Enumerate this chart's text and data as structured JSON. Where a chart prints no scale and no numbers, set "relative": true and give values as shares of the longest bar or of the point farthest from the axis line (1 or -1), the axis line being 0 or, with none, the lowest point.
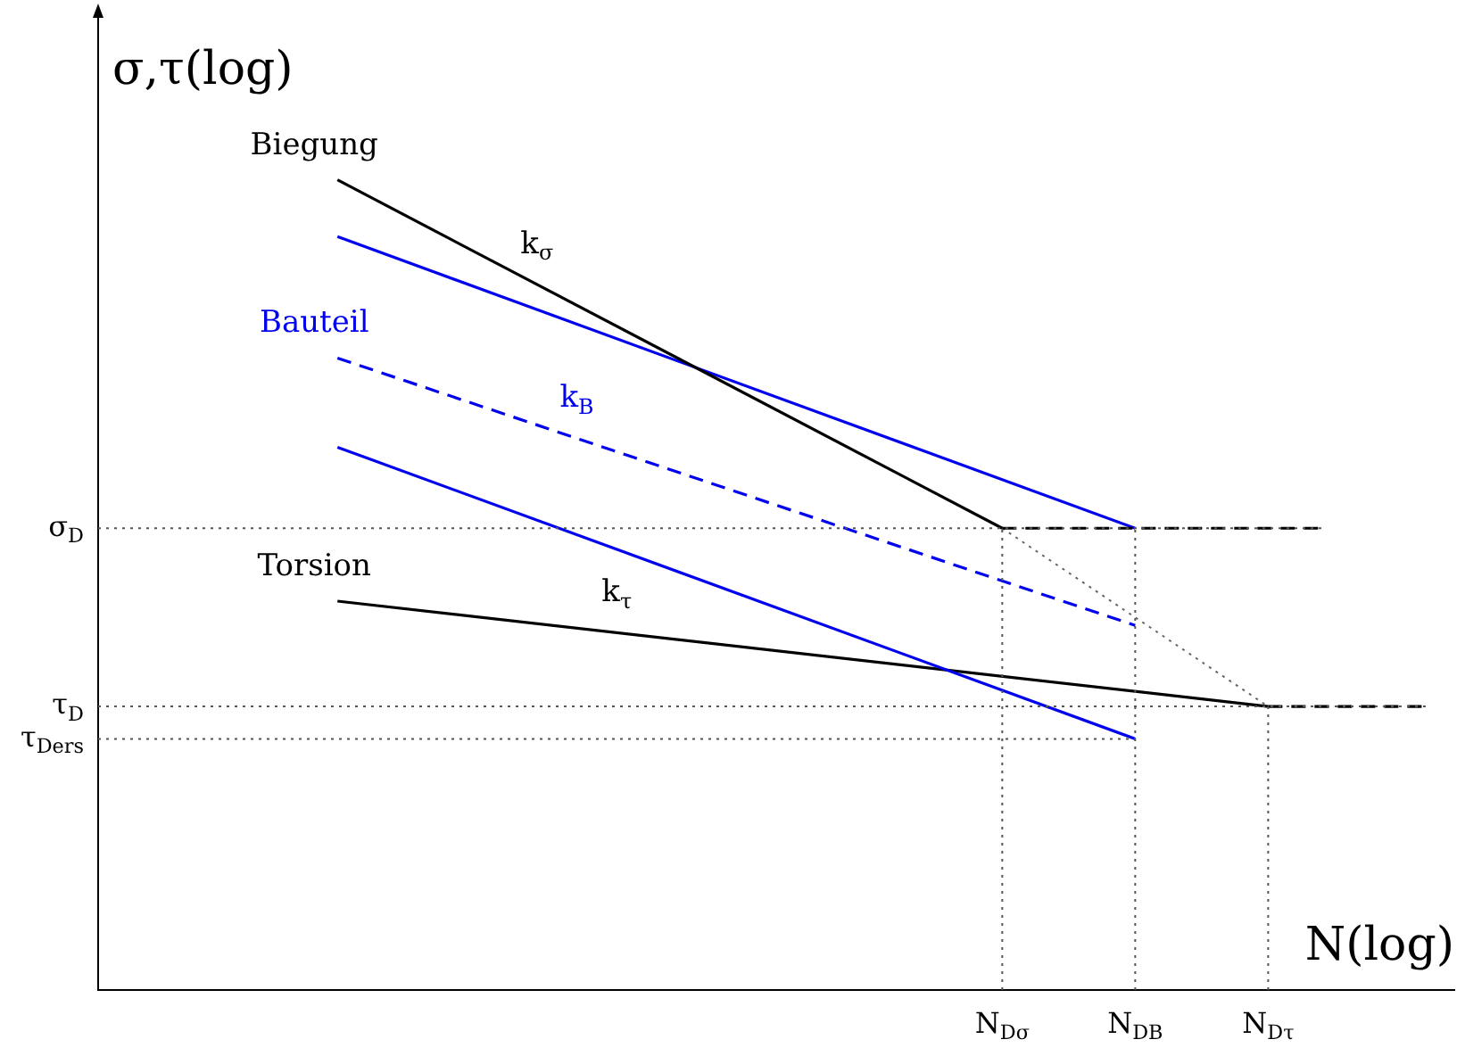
{
  "chart_data": {
    "type": "line",
    "xlabel": "N(log)",
    "ylabel": "σ,τ(log)",
    "relative": true,
    "legend": false,
    "marker": "none",
    "categories": [
      null,
      null,
      null,
      null,
      null,
      null,
      null,
      null,
      null,
      null,
      null,
      null,
      null,
      null,
      null,
      null,
      null,
      null,
      null,
      null,
      null,
      null,
      null,
      null,
      null,
      null,
      null,
      null,
      null,
      null,
      null,
      null,
      null,
      null,
      "N$_{Dσ}$",
      null,
      null,
      null,
      null,
      "N$_{DB}$",
      null,
      null,
      null,
      null,
      "N$_{Dτ}$",
      null,
      null,
      null,
      null,
      null,
      null,
      null
    ],
    "series": [
      {
        "name": "Biegung",
        "color": "#000000",
        "line_style": "solid",
        "values": [
          null,
          null,
          null,
          null,
          null,
          null,
          null,
          null,
          null,
          1,
          null,
          null,
          null,
          null,
          null,
          null,
          null,
          null,
          null,
          null,
          null,
          null,
          null,
          null,
          null,
          null,
          null,
          null,
          null,
          null,
          null,
          null,
          null,
          null,
          0.57,
          null,
          null,
          null,
          null,
          null,
          null,
          null,
          null,
          null,
          null,
          null,
          null,
          null,
          null,
          null,
          null,
          null
        ]
      },
      {
        "color": "#000000",
        "line_style": "dashed",
        "values": [
          null,
          null,
          null,
          null,
          null,
          null,
          null,
          null,
          null,
          null,
          null,
          null,
          null,
          null,
          null,
          null,
          null,
          null,
          null,
          null,
          null,
          null,
          null,
          null,
          null,
          null,
          null,
          null,
          null,
          null,
          null,
          null,
          null,
          null,
          0.57,
          null,
          null,
          null,
          null,
          null,
          null,
          null,
          null,
          null,
          null,
          null,
          0.57,
          null,
          null,
          null,
          null,
          null
        ]
      },
      {
        "color": "#0000ee",
        "line_style": "solid",
        "values": [
          null,
          null,
          null,
          null,
          null,
          null,
          null,
          null,
          null,
          0.93,
          null,
          null,
          null,
          null,
          null,
          null,
          null,
          null,
          null,
          null,
          null,
          null,
          null,
          null,
          null,
          null,
          null,
          null,
          null,
          null,
          null,
          null,
          null,
          null,
          null,
          null,
          null,
          null,
          null,
          0.57,
          null,
          null,
          null,
          null,
          null,
          null,
          null,
          null,
          null,
          null,
          null,
          null
        ]
      },
      {
        "name": "Bauteil",
        "color": "#0000ee",
        "line_style": "dashed",
        "values": [
          null,
          null,
          null,
          null,
          null,
          null,
          null,
          null,
          null,
          0.78,
          null,
          null,
          null,
          null,
          null,
          null,
          null,
          null,
          null,
          null,
          null,
          null,
          null,
          null,
          null,
          null,
          null,
          null,
          null,
          null,
          null,
          null,
          null,
          null,
          null,
          null,
          null,
          null,
          null,
          0.45,
          null,
          null,
          null,
          null,
          null,
          null,
          null,
          null,
          null,
          null,
          null,
          null
        ]
      },
      {
        "color": "#0000ee",
        "line_style": "solid",
        "values": [
          null,
          null,
          null,
          null,
          null,
          null,
          null,
          null,
          null,
          0.67,
          null,
          null,
          null,
          null,
          null,
          null,
          null,
          null,
          null,
          null,
          null,
          null,
          null,
          null,
          null,
          null,
          null,
          null,
          null,
          null,
          null,
          null,
          null,
          null,
          null,
          null,
          null,
          null,
          null,
          0.31,
          null,
          null,
          null,
          null,
          null,
          null,
          null,
          null,
          null,
          null,
          null,
          null
        ]
      },
      {
        "name": "Torsion",
        "color": "#000000",
        "line_style": "solid",
        "values": [
          null,
          null,
          null,
          null,
          null,
          null,
          null,
          null,
          null,
          0.48,
          null,
          null,
          null,
          null,
          null,
          null,
          null,
          null,
          null,
          null,
          null,
          null,
          null,
          null,
          null,
          null,
          null,
          null,
          null,
          null,
          null,
          null,
          null,
          null,
          null,
          null,
          null,
          null,
          null,
          null,
          null,
          null,
          null,
          null,
          0.35,
          null,
          null,
          null,
          null,
          null,
          null,
          null
        ]
      },
      {
        "color": "#000000",
        "line_style": "dashed",
        "values": [
          null,
          null,
          null,
          null,
          null,
          null,
          null,
          null,
          null,
          null,
          null,
          null,
          null,
          null,
          null,
          null,
          null,
          null,
          null,
          null,
          null,
          null,
          null,
          null,
          null,
          null,
          null,
          null,
          null,
          null,
          null,
          null,
          null,
          null,
          null,
          null,
          null,
          null,
          null,
          null,
          null,
          null,
          null,
          null,
          0.35,
          null,
          null,
          null,
          null,
          null,
          0.35,
          null
        ]
      },
      {
        "color": "#666666",
        "line_style": "dotted",
        "values": [
          null,
          null,
          null,
          null,
          null,
          null,
          null,
          null,
          null,
          null,
          null,
          null,
          null,
          null,
          null,
          null,
          null,
          null,
          null,
          null,
          null,
          null,
          null,
          null,
          null,
          null,
          null,
          null,
          null,
          null,
          null,
          null,
          null,
          null,
          0.57,
          null,
          null,
          null,
          null,
          null,
          null,
          null,
          null,
          null,
          0.35,
          null,
          null,
          null,
          null,
          null,
          null,
          null
        ]
      }
    ],
    "ref_lines": [
      {
        "axis": "y",
        "value": 0.57,
        "label": "σ$_{D}$",
        "line_style": "dotted"
      },
      {
        "axis": "y",
        "value": 0.35,
        "label": "τ$_{D}$",
        "line_style": "dotted"
      },
      {
        "axis": "y",
        "value": 0.31,
        "label": "τ$_{Ders}$",
        "line_style": "dotted"
      }
    ],
    "annotations": [
      "k$_{σ}$",
      "k$_{B}$",
      "k$_{τ}$"
    ]
  }
}
